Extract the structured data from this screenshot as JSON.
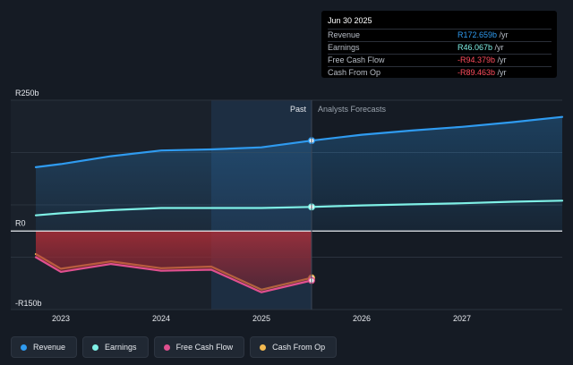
{
  "tooltip": {
    "date": "Jun 30 2025",
    "rows": [
      {
        "label": "Revenue",
        "value": "R172.659b",
        "unit": " /yr",
        "color": "#2f9bf0"
      },
      {
        "label": "Earnings",
        "value": "R46.067b",
        "unit": " /yr",
        "color": "#7ff0e6"
      },
      {
        "label": "Free Cash Flow",
        "value": "-R94.379b",
        "unit": " /yr",
        "color": "#ff4d5e"
      },
      {
        "label": "Cash From Op",
        "value": "-R89.463b",
        "unit": " /yr",
        "color": "#ff4d5e"
      }
    ]
  },
  "legend": [
    {
      "label": "Revenue",
      "color": "#2f9bf0"
    },
    {
      "label": "Earnings",
      "color": "#7ff0e6"
    },
    {
      "label": "Free Cash Flow",
      "color": "#e0508f"
    },
    {
      "label": "Cash From Op",
      "color": "#f2b950"
    }
  ],
  "chart_data": {
    "type": "line",
    "title": "",
    "ylim": [
      -150,
      250
    ],
    "xlim": [
      2022.5,
      2028.0
    ],
    "y_tick_labels": [
      {
        "value": 250,
        "label": "R250b"
      },
      {
        "value": 0,
        "label": "R0"
      },
      {
        "value": -150,
        "label": "-R150b"
      }
    ],
    "x_ticks": [
      2023,
      2024,
      2025,
      2026,
      2027
    ],
    "x_tick_labels": [
      "2023",
      "2024",
      "2025",
      "2026",
      "2027"
    ],
    "divider_x": 2025.5,
    "highlight_start_x": 2024.5,
    "past_label": "Past",
    "forecast_label": "Analysts Forecasts",
    "series": [
      {
        "name": "Revenue",
        "color": "#2f9bf0",
        "fill": true,
        "points": [
          [
            2022.75,
            122
          ],
          [
            2023.0,
            128
          ],
          [
            2023.5,
            143
          ],
          [
            2024.0,
            154
          ],
          [
            2024.5,
            156
          ],
          [
            2025.0,
            160
          ],
          [
            2025.5,
            172.7
          ],
          [
            2026.0,
            184
          ],
          [
            2026.5,
            192
          ],
          [
            2027.0,
            199
          ],
          [
            2027.5,
            208
          ],
          [
            2028.0,
            218
          ]
        ]
      },
      {
        "name": "Earnings",
        "color": "#7ff0e6",
        "fill": false,
        "points": [
          [
            2022.75,
            30
          ],
          [
            2023.0,
            34
          ],
          [
            2023.5,
            40
          ],
          [
            2024.0,
            44
          ],
          [
            2024.5,
            44
          ],
          [
            2025.0,
            44
          ],
          [
            2025.5,
            46.1
          ],
          [
            2026.0,
            49
          ],
          [
            2026.5,
            51
          ],
          [
            2027.0,
            53
          ],
          [
            2027.5,
            56
          ],
          [
            2028.0,
            58
          ]
        ]
      },
      {
        "name": "Cash From Op",
        "color": "#f2b950",
        "fill": false,
        "points": [
          [
            2022.75,
            -44
          ],
          [
            2023.0,
            -72
          ],
          [
            2023.5,
            -58
          ],
          [
            2024.0,
            -71
          ],
          [
            2024.5,
            -68
          ],
          [
            2025.0,
            -112
          ],
          [
            2025.5,
            -89.5
          ]
        ]
      },
      {
        "name": "Free Cash Flow",
        "color": "#e0508f",
        "fill": true,
        "points": [
          [
            2022.75,
            -50
          ],
          [
            2023.0,
            -78
          ],
          [
            2023.5,
            -63
          ],
          [
            2024.0,
            -76
          ],
          [
            2024.5,
            -74
          ],
          [
            2025.0,
            -117
          ],
          [
            2025.5,
            -94.4
          ]
        ]
      }
    ]
  }
}
